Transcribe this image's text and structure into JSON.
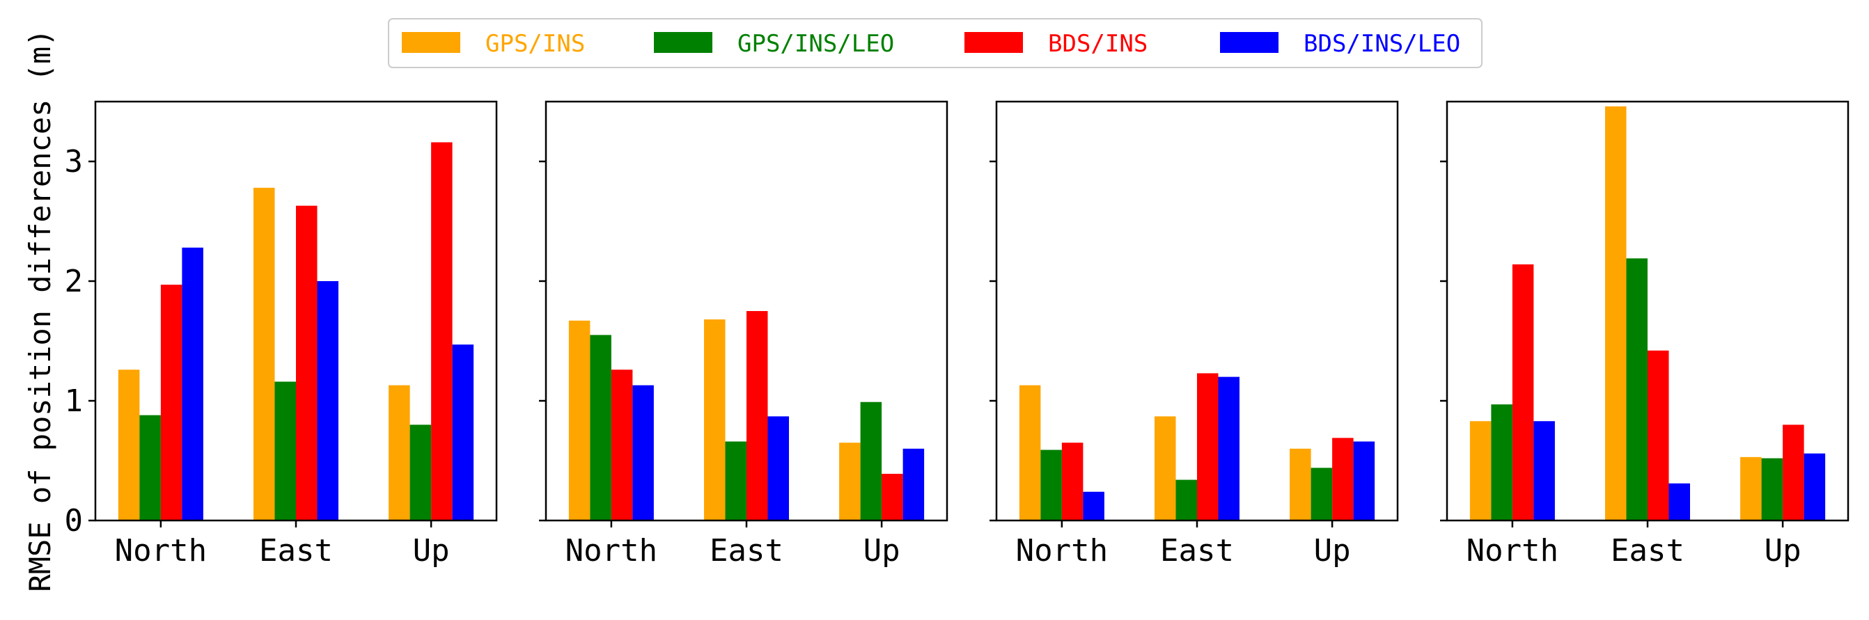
{
  "chart_data": {
    "type": "bar",
    "ylabel": "RMSE of position differences (m)",
    "ylim": [
      0,
      3.5
    ],
    "yticks": [
      "0",
      "1",
      "2",
      "3"
    ],
    "legend": {
      "placement": "top-center",
      "entries": [
        {
          "name": "GPS/INS",
          "color": "#FFA500"
        },
        {
          "name": "GPS/INS/LEO",
          "color": "#008000"
        },
        {
          "name": "BDS/INS",
          "color": "#FF0000"
        },
        {
          "name": "BDS/INS/LEO",
          "color": "#0000FF"
        }
      ]
    },
    "panels": [
      {
        "categories": [
          "North",
          "East",
          "Up"
        ],
        "series": [
          {
            "name": "GPS/INS",
            "values": [
              1.26,
              2.78,
              1.13
            ]
          },
          {
            "name": "GPS/INS/LEO",
            "values": [
              0.88,
              1.16,
              0.8
            ]
          },
          {
            "name": "BDS/INS",
            "values": [
              1.97,
              2.63,
              3.16
            ]
          },
          {
            "name": "BDS/INS/LEO",
            "values": [
              2.28,
              2.0,
              1.47
            ]
          }
        ]
      },
      {
        "categories": [
          "North",
          "East",
          "Up"
        ],
        "series": [
          {
            "name": "GPS/INS",
            "values": [
              1.67,
              1.68,
              0.65
            ]
          },
          {
            "name": "GPS/INS/LEO",
            "values": [
              1.55,
              0.66,
              0.99
            ]
          },
          {
            "name": "BDS/INS",
            "values": [
              1.26,
              1.75,
              0.39
            ]
          },
          {
            "name": "BDS/INS/LEO",
            "values": [
              1.13,
              0.87,
              0.6
            ]
          }
        ]
      },
      {
        "categories": [
          "North",
          "East",
          "Up"
        ],
        "series": [
          {
            "name": "GPS/INS",
            "values": [
              1.13,
              0.87,
              0.6
            ]
          },
          {
            "name": "GPS/INS/LEO",
            "values": [
              0.59,
              0.34,
              0.44
            ]
          },
          {
            "name": "BDS/INS",
            "values": [
              0.65,
              1.23,
              0.69
            ]
          },
          {
            "name": "BDS/INS/LEO",
            "values": [
              0.24,
              1.2,
              0.66
            ]
          }
        ]
      },
      {
        "categories": [
          "North",
          "East",
          "Up"
        ],
        "series": [
          {
            "name": "GPS/INS",
            "values": [
              0.83,
              3.46,
              0.53
            ]
          },
          {
            "name": "GPS/INS/LEO",
            "values": [
              0.97,
              2.19,
              0.52
            ]
          },
          {
            "name": "BDS/INS",
            "values": [
              2.14,
              1.42,
              0.8
            ]
          },
          {
            "name": "BDS/INS/LEO",
            "values": [
              0.83,
              0.31,
              0.56
            ]
          }
        ]
      }
    ]
  }
}
